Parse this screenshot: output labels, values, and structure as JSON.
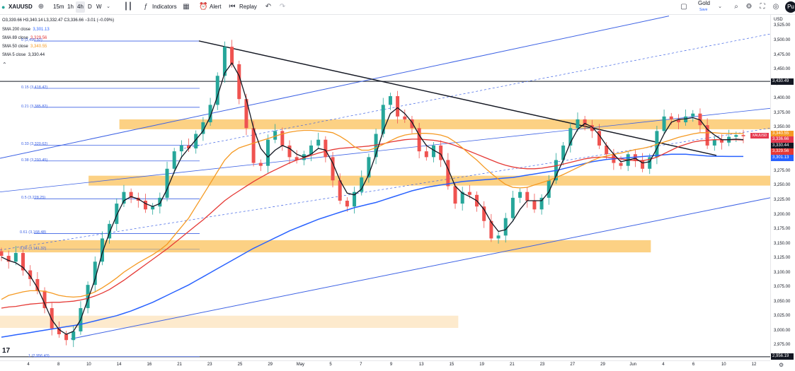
{
  "toolbar": {
    "symbol": "XAUUSD",
    "timeframes": [
      "15m",
      "1h",
      "4h",
      "D",
      "W"
    ],
    "active_timeframe": "4h",
    "indicators_label": "Indicators",
    "alert_label": "Alert",
    "replay_label": "Replay",
    "right_label": "Gold",
    "right_sublabel": "Save",
    "avatar": "Pu"
  },
  "legend": {
    "ohlc": "O3,339.66 H3,340.14 L3,332.47 C3,336.66 −3.01 (−0.09%)",
    "items": [
      {
        "label": "SMA 200 close",
        "value": "3,301.13",
        "color": "#2962ff"
      },
      {
        "label": "SMA 89 close",
        "value": "3,329.56",
        "color": "#e53935"
      },
      {
        "label": "SMA 50 close",
        "value": "3,340.55",
        "color": "#f59a23"
      },
      {
        "label": "SMA 5 close",
        "value": "3,330.44",
        "color": "#131722"
      }
    ]
  },
  "chart_data": {
    "type": "candlestick",
    "currency": "USD",
    "ylim": [
      2950,
      3545
    ],
    "y_ticks": [
      "3,525.00",
      "3,500.00",
      "3,475.00",
      "3,450.00",
      "3,425.00",
      "3,400.00",
      "3,375.00",
      "3,350.00",
      "3,325.00",
      "3,300.00",
      "3,275.00",
      "3,250.00",
      "3,225.00",
      "3,200.00",
      "3,175.00",
      "3,150.00",
      "3,125.00",
      "3,100.00",
      "3,075.00",
      "3,050.00",
      "3,025.00",
      "3,000.00",
      "2,975.00"
    ],
    "x_ticks": [
      "4",
      "8",
      "10",
      "14",
      "16",
      "21",
      "23",
      "25",
      "29",
      "May",
      "5",
      "7",
      "9",
      "13",
      "15",
      "19",
      "21",
      "23",
      "27",
      "29",
      "Jun",
      "4",
      "6",
      "10",
      "12"
    ],
    "price_tags": [
      {
        "label": "3,430.49",
        "value": 3430.49,
        "color": "#131722"
      },
      {
        "label": "3,340.55",
        "value": 3340.55,
        "color": "#f59a23"
      },
      {
        "label": "3,336.66",
        "value": 3336.66,
        "color": "#e53950"
      },
      {
        "label": "3,330.44",
        "value": 3330.44,
        "color": "#131722"
      },
      {
        "label": "3,329.56",
        "value": 3329.56,
        "color": "#e53935"
      },
      {
        "label": "3,301.13",
        "value": 3301.13,
        "color": "#2962ff"
      },
      {
        "label": "2,956.19",
        "value": 2956.19,
        "color": "#131722"
      }
    ],
    "symbol_tag": "XAUUSD",
    "fib_levels": [
      {
        "label": "0 (3,499.92)",
        "value": 3499.92
      },
      {
        "label": "0.15 (3,418.42)",
        "value": 3418.42
      },
      {
        "label": "0.21 (3,385.82)",
        "value": 3385.82
      },
      {
        "label": "0.33 (3,320.62)",
        "value": 3320.62
      },
      {
        "label": "0.38 (3,293.45)",
        "value": 3293.45
      },
      {
        "label": "0.5 (3,228.25)",
        "value": 3228.25
      },
      {
        "label": "0.61 (3,168.48)",
        "value": 3168.48
      },
      {
        "label": "0.66 (3,141.32)",
        "value": 3141.32
      },
      {
        "label": "1 (2,956.43)",
        "value": 2956.43
      }
    ],
    "zones": [
      {
        "from": 3348,
        "to": 3365,
        "start": 0.155,
        "end": 1.0
      },
      {
        "from": 3251,
        "to": 3268,
        "start": 0.115,
        "end": 1.0
      },
      {
        "from": 3136,
        "to": 3157,
        "start": 0.0,
        "end": 0.845
      },
      {
        "from": 3006,
        "to": 3027,
        "start": 0.0,
        "end": 0.595
      }
    ],
    "close": [
      3130,
      3120,
      3135,
      3105,
      3090,
      3070,
      3040,
      3005,
      2995,
      2985,
      3000,
      3040,
      3080,
      3120,
      3160,
      3185,
      3220,
      3240,
      3230,
      3225,
      3210,
      3215,
      3230,
      3280,
      3310,
      3320,
      3315,
      3340,
      3360,
      3390,
      3440,
      3490,
      3460,
      3400,
      3350,
      3290,
      3285,
      3330,
      3345,
      3320,
      3300,
      3295,
      3305,
      3320,
      3330,
      3300,
      3260,
      3225,
      3215,
      3240,
      3265,
      3300,
      3340,
      3390,
      3405,
      3370,
      3365,
      3350,
      3310,
      3300,
      3320,
      3295,
      3250,
      3220,
      3240,
      3235,
      3215,
      3190,
      3160,
      3165,
      3195,
      3230,
      3240,
      3225,
      3210,
      3230,
      3260,
      3295,
      3320,
      3350,
      3365,
      3355,
      3345,
      3320,
      3305,
      3290,
      3285,
      3305,
      3295,
      3280,
      3300,
      3345,
      3370,
      3365,
      3360,
      3370,
      3375,
      3355,
      3320,
      3330,
      3325,
      3335,
      3338,
      3336
    ],
    "sma5": [
      3128,
      3122,
      3118,
      3110,
      3095,
      3075,
      3048,
      3020,
      3003,
      2995,
      3000,
      3020,
      3055,
      3090,
      3135,
      3170,
      3200,
      3225,
      3232,
      3228,
      3220,
      3215,
      3220,
      3245,
      3275,
      3300,
      3315,
      3330,
      3345,
      3370,
      3405,
      3445,
      3462,
      3440,
      3400,
      3350,
      3315,
      3300,
      3312,
      3320,
      3315,
      3305,
      3300,
      3305,
      3315,
      3312,
      3290,
      3260,
      3238,
      3235,
      3245,
      3270,
      3305,
      3345,
      3375,
      3385,
      3375,
      3360,
      3338,
      3320,
      3312,
      3305,
      3280,
      3250,
      3238,
      3232,
      3225,
      3210,
      3188,
      3172,
      3175,
      3190,
      3210,
      3225,
      3225,
      3225,
      3240,
      3268,
      3295,
      3325,
      3348,
      3358,
      3352,
      3338,
      3320,
      3305,
      3292,
      3295,
      3298,
      3290,
      3292,
      3315,
      3340,
      3360,
      3365,
      3366,
      3368,
      3364,
      3348,
      3338,
      3330,
      3330,
      3331,
      3330
    ],
    "sma50": [
      3055,
      3062,
      3065,
      3068,
      3070,
      3070,
      3069,
      3066,
      3062,
      3060,
      3059,
      3060,
      3063,
      3068,
      3075,
      3083,
      3092,
      3102,
      3110,
      3118,
      3125,
      3132,
      3140,
      3150,
      3165,
      3180,
      3195,
      3215,
      3235,
      3255,
      3275,
      3295,
      3308,
      3316,
      3320,
      3324,
      3328,
      3332,
      3336,
      3340,
      3343,
      3345,
      3346,
      3346,
      3345,
      3344,
      3342,
      3336,
      3328,
      3318,
      3312,
      3312,
      3316,
      3322,
      3328,
      3334,
      3338,
      3340,
      3341,
      3341,
      3340,
      3338,
      3334,
      3326,
      3316,
      3305,
      3295,
      3283,
      3272,
      3262,
      3253,
      3248,
      3247,
      3248,
      3252,
      3256,
      3260,
      3265,
      3270,
      3276,
      3282,
      3288,
      3294,
      3299,
      3302,
      3305,
      3307,
      3310,
      3313,
      3315,
      3318,
      3322,
      3326,
      3330,
      3334,
      3337,
      3340,
      3342,
      3342,
      3342,
      3341,
      3341,
      3341,
      3340.55
    ],
    "sma89": [
      3040,
      3042,
      3043,
      3045,
      3047,
      3048,
      3049,
      3050,
      3050,
      3051,
      3052,
      3054,
      3057,
      3061,
      3066,
      3072,
      3080,
      3088,
      3097,
      3106,
      3115,
      3124,
      3133,
      3142,
      3152,
      3162,
      3172,
      3182,
      3192,
      3203,
      3214,
      3225,
      3234,
      3242,
      3250,
      3258,
      3265,
      3272,
      3278,
      3284,
      3290,
      3295,
      3299,
      3303,
      3307,
      3310,
      3313,
      3315,
      3316,
      3317,
      3318,
      3319,
      3321,
      3323,
      3326,
      3328,
      3330,
      3331,
      3331,
      3330,
      3329,
      3327,
      3324,
      3320,
      3315,
      3310,
      3305,
      3300,
      3295,
      3290,
      3286,
      3283,
      3281,
      3280,
      3280,
      3281,
      3283,
      3285,
      3288,
      3291,
      3294,
      3297,
      3299,
      3300,
      3300,
      3299,
      3297,
      3295,
      3294,
      3294,
      3296,
      3300,
      3306,
      3312,
      3318,
      3322,
      3326,
      3328,
      3329,
      3330,
      3330,
      3330,
      3330,
      3329.56
    ],
    "sma200": [
      2990,
      2992,
      2994,
      2996,
      2998,
      3000,
      3002,
      3004,
      3006,
      3008,
      3010,
      3012,
      3015,
      3018,
      3021,
      3024,
      3027,
      3031,
      3035,
      3040,
      3045,
      3050,
      3056,
      3062,
      3068,
      3074,
      3080,
      3087,
      3094,
      3101,
      3108,
      3115,
      3122,
      3129,
      3136,
      3143,
      3149,
      3155,
      3161,
      3167,
      3173,
      3178,
      3183,
      3188,
      3193,
      3197,
      3201,
      3205,
      3209,
      3213,
      3216,
      3219,
      3222,
      3226,
      3230,
      3234,
      3238,
      3242,
      3245,
      3248,
      3250,
      3252,
      3254,
      3256,
      3258,
      3259,
      3260,
      3261,
      3262,
      3263,
      3264,
      3265,
      3267,
      3269,
      3271,
      3273,
      3275,
      3277,
      3280,
      3283,
      3286,
      3289,
      3292,
      3294,
      3296,
      3297,
      3298,
      3299,
      3300,
      3301,
      3302,
      3303,
      3304,
      3305,
      3305,
      3305,
      3304,
      3303,
      3302,
      3301.5,
      3301.3,
      3301.2,
      3301.1,
      3301.13
    ]
  }
}
